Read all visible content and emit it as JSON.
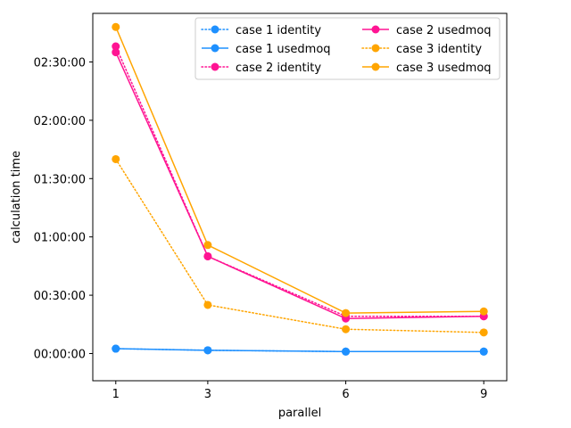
{
  "chart_data": {
    "type": "line",
    "title": "",
    "xlabel": "parallel",
    "ylabel": "calculation time",
    "x_ticks": [
      1,
      3,
      6,
      9
    ],
    "y_tick_seconds": [
      0,
      1800,
      3600,
      5400,
      7200,
      9000
    ],
    "y_tick_labels": [
      "00:00:00",
      "00:30:00",
      "01:00:00",
      "01:30:00",
      "02:00:00",
      "02:30:00"
    ],
    "xlim": [
      0.5,
      9.5
    ],
    "ylim_seconds": [
      -840,
      10500
    ],
    "grid": false,
    "legend": {
      "placement": "upper-right",
      "columns": 2
    },
    "series": [
      {
        "name": "case 1 identity",
        "color": "#1e90ff",
        "linestyle": "dotted",
        "marker": "circle",
        "x": [
          1,
          3,
          6,
          9
        ],
        "y_seconds": [
          150,
          100,
          60,
          60
        ]
      },
      {
        "name": "case 1 usedmoq",
        "color": "#1e90ff",
        "linestyle": "solid",
        "marker": "circle",
        "x": [
          1,
          3,
          6,
          9
        ],
        "y_seconds": [
          150,
          100,
          60,
          60
        ]
      },
      {
        "name": "case 2 identity",
        "color": "#ff1493",
        "linestyle": "dotted",
        "marker": "circle",
        "x": [
          1,
          3,
          6,
          9
        ],
        "y_seconds": [
          9480,
          3000,
          1150,
          1150
        ]
      },
      {
        "name": "case 2 usedmoq",
        "color": "#ff1493",
        "linestyle": "solid",
        "marker": "circle",
        "x": [
          1,
          3,
          6,
          9
        ],
        "y_seconds": [
          9300,
          3000,
          1080,
          1150
        ]
      },
      {
        "name": "case 3 identity",
        "color": "#ffa500",
        "linestyle": "dotted",
        "marker": "circle",
        "x": [
          1,
          3,
          6,
          9
        ],
        "y_seconds": [
          6000,
          1500,
          750,
          650
        ]
      },
      {
        "name": "case 3 usedmoq",
        "color": "#ffa500",
        "linestyle": "solid",
        "marker": "circle",
        "x": [
          1,
          3,
          6,
          9
        ],
        "y_seconds": [
          10080,
          3350,
          1250,
          1300
        ]
      }
    ]
  }
}
